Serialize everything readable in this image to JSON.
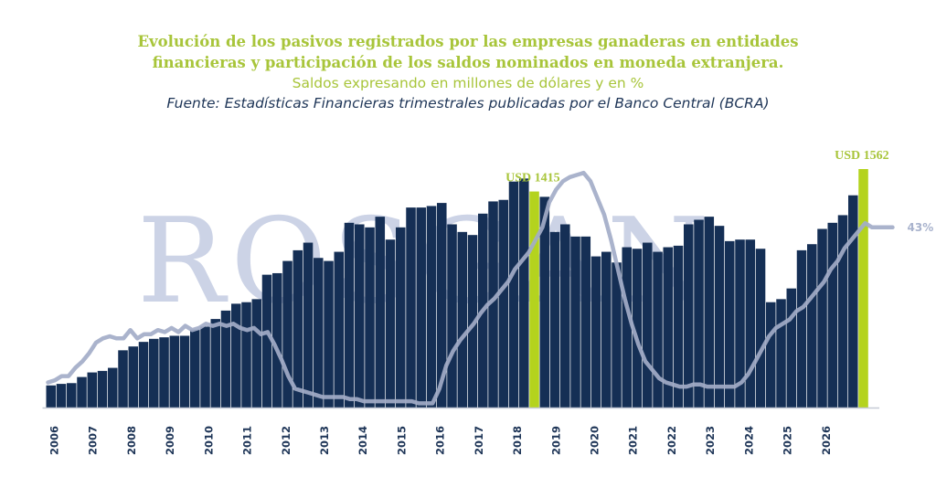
{
  "header": {
    "title_line1": "Evolución de los pasivos registrados por las empresas ganaderas en entidades",
    "title_line2": "financieras y participación de los saldos nominados en moneda extranjera.",
    "subtitle": "Saldos expresando en millones de dólares y en %",
    "source": "Fuente: Estadísticas Financieras trimestrales publicadas por el Banco Central (BCRA)"
  },
  "watermark": "ROSGAN",
  "colors": {
    "bars": "#152f55",
    "highlight": "#b4d31e",
    "line": "#a3adc8",
    "text": "#1e3557",
    "title": "#a8c53a"
  },
  "chart_data": {
    "type": "bar",
    "x_ticks": [
      "2006",
      "2007",
      "2008",
      "2009",
      "2010",
      "2011",
      "2012",
      "2013",
      "2014",
      "2015",
      "2016",
      "2017",
      "2018",
      "2019",
      "2020",
      "2021",
      "2022",
      "2023",
      "2024",
      "2025",
      "2026"
    ],
    "series": [
      {
        "type": "bar",
        "unit": "millones de USD",
        "values": [
          145,
          155,
          160,
          200,
          230,
          240,
          260,
          375,
          400,
          430,
          450,
          460,
          470,
          470,
          510,
          530,
          580,
          635,
          680,
          690,
          710,
          870,
          880,
          960,
          1030,
          1080,
          980,
          960,
          1020,
          1210,
          1200,
          1180,
          1250,
          1100,
          1180,
          1310,
          1310,
          1320,
          1340,
          1200,
          1150,
          1130,
          1270,
          1350,
          1360,
          1480,
          1500,
          1415,
          1380,
          1150,
          1200,
          1120,
          1120,
          990,
          1020,
          950,
          1050,
          1040,
          1080,
          1020,
          1050,
          1060,
          1200,
          1230,
          1250,
          1190,
          1090,
          1100,
          1100,
          1040,
          690,
          710,
          780,
          1030,
          1070,
          1170,
          1210,
          1260,
          1390,
          1562
        ],
        "highlight": [
          {
            "index": 47,
            "label": "USD 1415"
          },
          {
            "index": 79,
            "label": "USD 1562"
          }
        ]
      },
      {
        "type": "line",
        "unit": "%",
        "values": [
          6,
          6.5,
          7.5,
          7.5,
          9.5,
          11,
          13,
          15.5,
          16.5,
          17,
          16.5,
          16.5,
          18.5,
          16.5,
          17.5,
          17.5,
          18.5,
          18,
          19,
          18,
          19.5,
          18.5,
          19,
          20,
          19.5,
          20,
          19.5,
          20,
          19,
          18.5,
          19,
          17.5,
          18,
          15,
          11.5,
          7.5,
          4.5,
          4,
          3.5,
          3,
          2.5,
          2.5,
          2.5,
          2.5,
          2,
          2,
          1.5,
          1.5,
          1.5,
          1.5,
          1.5,
          1.5,
          1.5,
          1.5,
          1,
          1,
          1,
          4.5,
          10,
          13.5,
          16,
          18,
          20,
          22.5,
          24.5,
          26,
          28,
          30,
          33,
          35,
          37,
          40,
          43,
          49,
          52,
          54,
          55,
          55.5,
          56,
          54,
          50,
          46,
          40,
          33,
          26,
          20,
          15,
          11,
          9,
          7,
          6,
          5.5,
          5,
          5,
          5.5,
          5.5,
          5,
          5,
          5,
          5,
          5,
          6,
          8,
          11,
          14,
          17,
          19,
          20,
          21,
          23,
          24,
          26,
          28,
          30,
          33,
          35,
          38,
          40,
          42,
          44,
          43,
          43,
          43,
          43
        ],
        "end_label": "43%"
      }
    ]
  }
}
